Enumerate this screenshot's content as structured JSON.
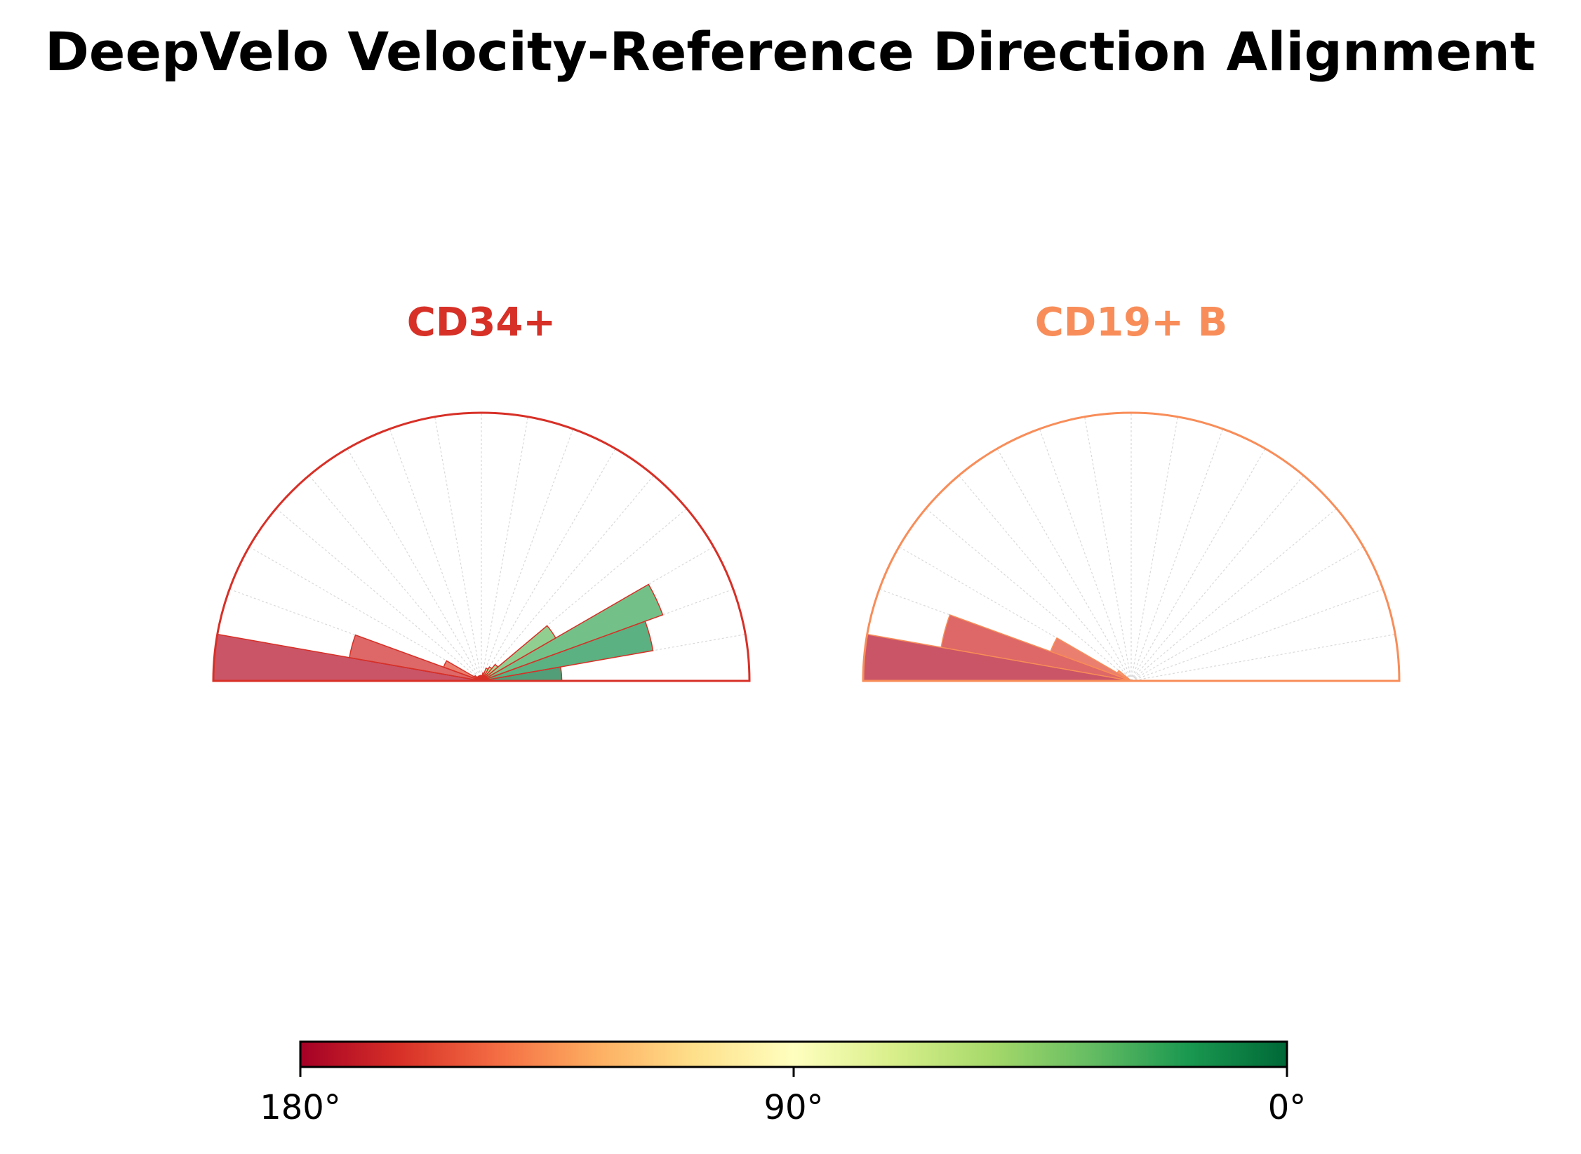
{
  "title": "DeepVelo Velocity-Reference Direction Alignment",
  "chart_data": [
    {
      "type": "polar-bar",
      "title": "CD34+",
      "title_color": "#d73027",
      "edge_color": "#d73027",
      "theta_range_deg": [
        0,
        180
      ],
      "bin_width_deg": 10,
      "r_max": 1.0,
      "bins": [
        {
          "angle_deg": 5,
          "value": 0.3
        },
        {
          "angle_deg": 15,
          "value": 0.65
        },
        {
          "angle_deg": 25,
          "value": 0.72
        },
        {
          "angle_deg": 35,
          "value": 0.32
        },
        {
          "angle_deg": 45,
          "value": 0.08
        },
        {
          "angle_deg": 55,
          "value": 0.06
        },
        {
          "angle_deg": 65,
          "value": 0.05
        },
        {
          "angle_deg": 75,
          "value": 0.03
        },
        {
          "angle_deg": 85,
          "value": 0.02
        },
        {
          "angle_deg": 95,
          "value": 0.02
        },
        {
          "angle_deg": 105,
          "value": 0.02
        },
        {
          "angle_deg": 115,
          "value": 0.02
        },
        {
          "angle_deg": 125,
          "value": 0.02
        },
        {
          "angle_deg": 135,
          "value": 0.02
        },
        {
          "angle_deg": 145,
          "value": 0.03
        },
        {
          "angle_deg": 155,
          "value": 0.15
        },
        {
          "angle_deg": 165,
          "value": 0.5
        },
        {
          "angle_deg": 175,
          "value": 1.0
        }
      ]
    },
    {
      "type": "polar-bar",
      "title": "CD19+ B",
      "title_color": "#f88d59",
      "edge_color": "#f88d59",
      "theta_range_deg": [
        0,
        180
      ],
      "bin_width_deg": 10,
      "r_max": 1.0,
      "bins": [
        {
          "angle_deg": 5,
          "value": 0.0
        },
        {
          "angle_deg": 15,
          "value": 0.0
        },
        {
          "angle_deg": 25,
          "value": 0.0
        },
        {
          "angle_deg": 35,
          "value": 0.0
        },
        {
          "angle_deg": 45,
          "value": 0.0
        },
        {
          "angle_deg": 55,
          "value": 0.0
        },
        {
          "angle_deg": 65,
          "value": 0.0
        },
        {
          "angle_deg": 75,
          "value": 0.0
        },
        {
          "angle_deg": 85,
          "value": 0.0
        },
        {
          "angle_deg": 95,
          "value": 0.0
        },
        {
          "angle_deg": 105,
          "value": 0.0
        },
        {
          "angle_deg": 115,
          "value": 0.0
        },
        {
          "angle_deg": 125,
          "value": 0.0
        },
        {
          "angle_deg": 135,
          "value": 0.0
        },
        {
          "angle_deg": 145,
          "value": 0.06
        },
        {
          "angle_deg": 155,
          "value": 0.32
        },
        {
          "angle_deg": 165,
          "value": 0.72
        },
        {
          "angle_deg": 175,
          "value": 1.0
        }
      ]
    }
  ],
  "colorbar": {
    "colormap": "RdYlGn_r",
    "range_deg": [
      180,
      0
    ],
    "ticks": [
      {
        "value": 180,
        "label": "180°"
      },
      {
        "value": 90,
        "label": "90°"
      },
      {
        "value": 0,
        "label": "0°"
      }
    ],
    "stops": [
      "#a50026",
      "#d73027",
      "#f46d43",
      "#fdae61",
      "#fee08b",
      "#ffffbf",
      "#d9ef8b",
      "#a6d96a",
      "#66bd63",
      "#1a9850",
      "#006837"
    ]
  }
}
